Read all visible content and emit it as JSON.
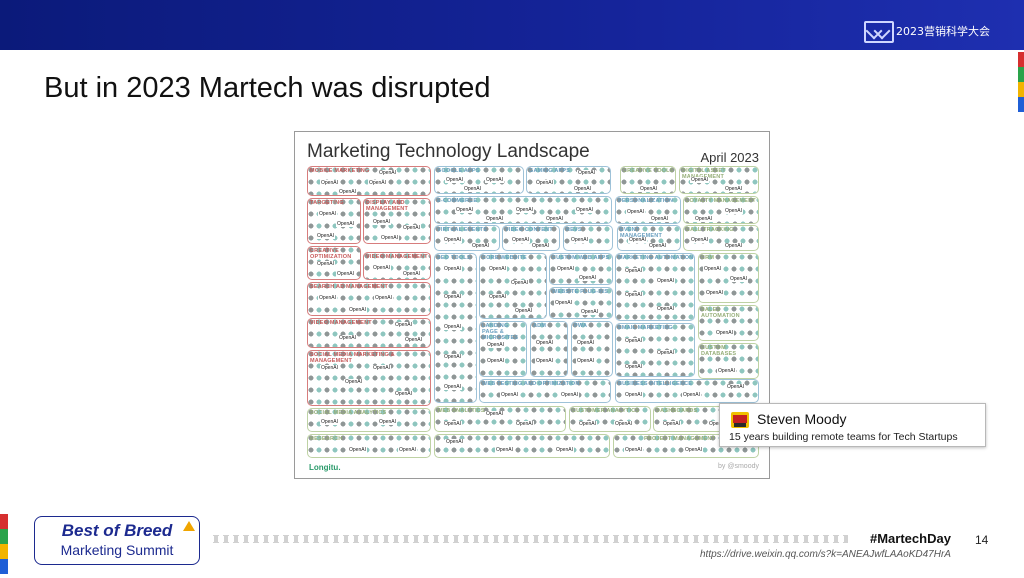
{
  "header": {
    "conference": "2023营销科学大会",
    "logo_icon": "mx-logo-icon"
  },
  "slide": {
    "title": "But in 2023 Martech was disrupted",
    "page_number": "14",
    "hashtag": "#MartechDay"
  },
  "landscape": {
    "title": "Marketing Technology Landscape",
    "date": "April 2023",
    "brand": "Longitu.",
    "byline": "by @smoody",
    "entry_label": "OpenAI",
    "categories": [
      {
        "label": "MOBILE MARKETING",
        "color": "red"
      },
      {
        "label": "TARGETING",
        "color": "red"
      },
      {
        "label": "DISPLAY AND MANAGEMENT",
        "color": "red"
      },
      {
        "label": "CREATIVE OPTIMIZATION",
        "color": "red"
      },
      {
        "label": "VIDEO MANAGEMENT",
        "color": "red"
      },
      {
        "label": "SEARCH AD MANAGEMENT",
        "color": "red"
      },
      {
        "label": "VIDEO MANAGEMENT",
        "color": "red"
      },
      {
        "label": "SOCIAL MEDIA MARKETING & MANAGEMENT",
        "color": "red"
      },
      {
        "label": "SOCIAL MEDIA ANALYTICS",
        "color": "green"
      },
      {
        "label": "GOOGLE APPS",
        "color": "blue"
      },
      {
        "label": "GAMING APPS",
        "color": "blue"
      },
      {
        "label": "CREATIVE TOOLS",
        "color": "green"
      },
      {
        "label": "DIGITAL ASSET MANAGEMENT",
        "color": "green"
      },
      {
        "label": "E-COMMERCE",
        "color": "blue"
      },
      {
        "label": "PERSONALIZATION",
        "color": "blue"
      },
      {
        "label": "LOYALTY MANAGEMENT",
        "color": "green"
      },
      {
        "label": "VIRTUAL EVENTS",
        "color": "blue"
      },
      {
        "label": "VIDEO CONTENT",
        "color": "blue"
      },
      {
        "label": "REVS",
        "color": "blue"
      },
      {
        "label": "EVENT MANAGEMENT",
        "color": "blue"
      },
      {
        "label": "CALL TRACKING",
        "color": "green"
      },
      {
        "label": "SEO TOOLS",
        "color": "blue"
      },
      {
        "label": "CORE WEBSITE",
        "color": "blue"
      },
      {
        "label": "CUSTOM WEB APPS",
        "color": "blue"
      },
      {
        "label": "MARKETING AUTOMATION",
        "color": "blue"
      },
      {
        "label": "CRM",
        "color": "green"
      },
      {
        "label": "WEBSITE PLUG-INS",
        "color": "blue"
      },
      {
        "label": "SALES AUTOMATION",
        "color": "green"
      },
      {
        "label": "LANDING PAGE & MICROSITES",
        "color": "blue"
      },
      {
        "label": "ADM",
        "color": "blue"
      },
      {
        "label": "PWA",
        "color": "blue"
      },
      {
        "label": "EMAIL MARKETING",
        "color": "blue"
      },
      {
        "label": "CUSTOM DATABASES",
        "color": "green"
      },
      {
        "label": "WEB TESTING AND OPTIMIZATION",
        "color": "blue"
      },
      {
        "label": "BUSINESS INTELLIGENCE",
        "color": "blue"
      },
      {
        "label": "WEB ANALYTICS",
        "color": "green"
      },
      {
        "label": "CUSTOMER ANALYTICS",
        "color": "green"
      },
      {
        "label": "DASHBOARDS",
        "color": "green"
      },
      {
        "label": "RESEARCH",
        "color": "green"
      },
      {
        "label": "PROJECT MANAGEMENT",
        "color": "green"
      }
    ]
  },
  "popup": {
    "avatar_icon": "avatar-icon",
    "name": "Steven Moody",
    "tagline": "15 years building remote teams for Tech Startups"
  },
  "footer": {
    "logo_line1": "Best of Breed",
    "logo_line2": "Marketing Summit",
    "url": "https://drive.weixin.qq.com/s?k=ANEAJwfLAAoKD47HrA"
  },
  "colors": {
    "header_bg": "#15249a",
    "accent_blue": "#1c2a8f",
    "strip": [
      "#d62f2f",
      "#2aa34a",
      "#f2b400",
      "#1f5fd6"
    ]
  }
}
